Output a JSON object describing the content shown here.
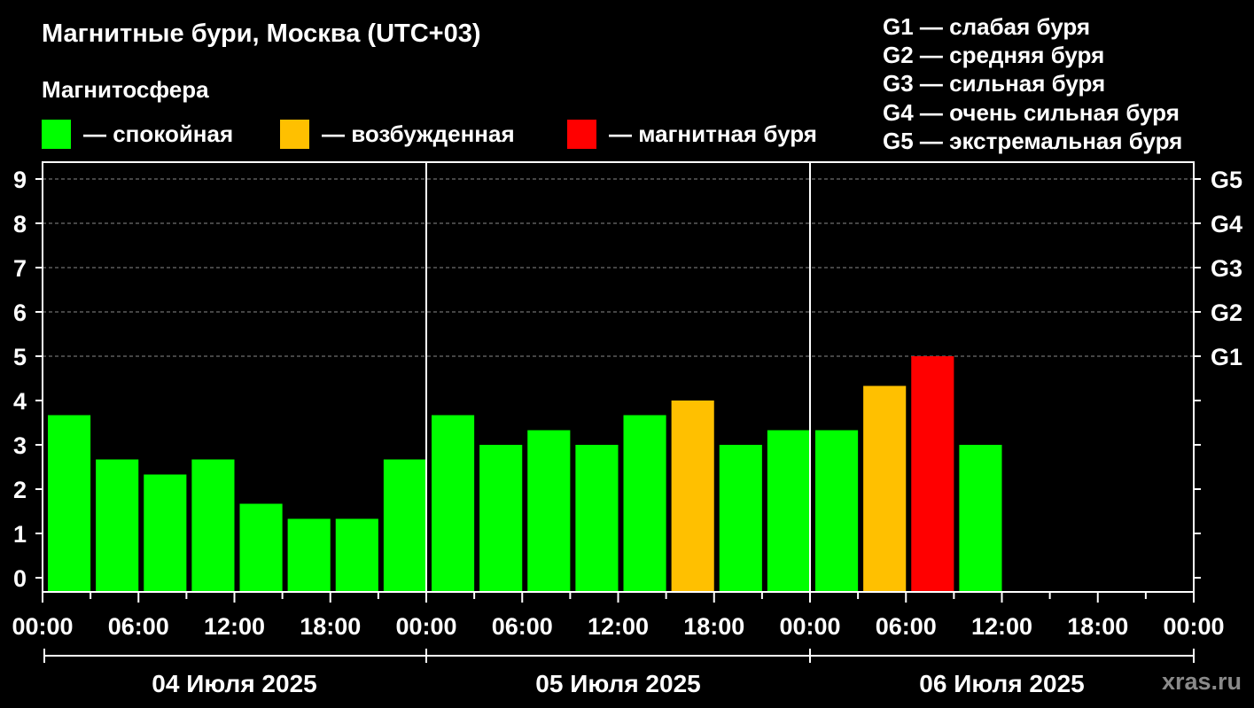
{
  "title": "Магнитные бури, Москва (UTC+03)",
  "subtitle": "Магнитосфера",
  "legend": [
    {
      "label": "— спокойная",
      "color": "#00ff00"
    },
    {
      "label": "— возбужденная",
      "color": "#ffc000"
    },
    {
      "label": "— магнитная буря",
      "color": "#ff0000"
    }
  ],
  "g_scale": [
    "G1 — слабая буря",
    "G2 — средняя буря",
    "G3 — сильная буря",
    "G4 — очень сильная буря",
    "G5 — экстремальная буря"
  ],
  "watermark": "xras.ru",
  "chart_data": {
    "type": "bar",
    "ylim": [
      0,
      9
    ],
    "y_ticks": [
      "0",
      "1",
      "2",
      "3",
      "4",
      "5",
      "6",
      "7",
      "8",
      "9"
    ],
    "right_ticks": [
      {
        "y": 5,
        "label": "G1"
      },
      {
        "y": 6,
        "label": "G2"
      },
      {
        "y": 7,
        "label": "G3"
      },
      {
        "y": 8,
        "label": "G4"
      },
      {
        "y": 9,
        "label": "G5"
      }
    ],
    "x_tick_labels": [
      "00:00",
      "06:00",
      "12:00",
      "18:00",
      "00:00",
      "06:00",
      "12:00",
      "18:00",
      "00:00",
      "06:00",
      "12:00",
      "18:00",
      "00:00"
    ],
    "days": [
      "04 Июля 2025",
      "05 Июля 2025",
      "06 Июля 2025"
    ],
    "grid_dashed_at": [
      5,
      6,
      7,
      8,
      9
    ],
    "values": [
      3.67,
      2.67,
      2.33,
      2.67,
      1.67,
      1.33,
      1.33,
      2.67,
      3.67,
      3.0,
      3.33,
      3.0,
      3.67,
      4.0,
      3.0,
      3.33,
      3.33,
      4.33,
      5.0,
      3.0
    ],
    "levels": [
      "quiet",
      "quiet",
      "quiet",
      "quiet",
      "quiet",
      "quiet",
      "quiet",
      "quiet",
      "quiet",
      "quiet",
      "quiet",
      "quiet",
      "quiet",
      "active",
      "quiet",
      "quiet",
      "quiet",
      "active",
      "storm",
      "quiet"
    ],
    "level_colors": {
      "quiet": "#00ff00",
      "active": "#ffc000",
      "storm": "#ff0000"
    }
  }
}
